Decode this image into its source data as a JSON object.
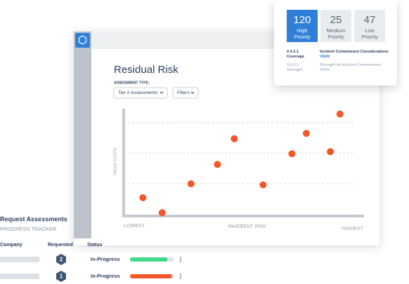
{
  "header": {
    "title": "Residual Risk",
    "assessment_type_label": "ASSESSMENT TYPE:",
    "dropdown": "Tier 2 Assessments",
    "filters": "Filters"
  },
  "chart_data": {
    "type": "scatter",
    "x_label": "INHERENT RISK",
    "y_label": "HIGH GAPS",
    "x_low_label": "LOWEST",
    "x_high_label": "HIGHEST",
    "x": [
      8,
      16,
      28,
      39,
      46,
      58,
      70,
      76,
      86,
      90
    ],
    "values": [
      17,
      3,
      30,
      48,
      72,
      29,
      58,
      77,
      60,
      95
    ],
    "xlim": [
      0,
      100
    ],
    "ylim": [
      0,
      100
    ],
    "color": "#f4582a"
  },
  "priority": [
    {
      "count": 120,
      "label": "High Priority"
    },
    {
      "count": 25,
      "label": "Medium Priority"
    },
    {
      "count": 47,
      "label": "Low Priority"
    }
  ],
  "controls": [
    {
      "code": "2.4.3.1",
      "kind": "Coverage",
      "name": "Incident Containment Considerations",
      "action": "VIEW"
    },
    {
      "code": "2.4.3.1",
      "kind": "Strength",
      "name": "Strength of Incident Containment",
      "action": "VIEW"
    }
  ],
  "tracker": {
    "title": "Request Assessments",
    "subtitle": "PROGRESS TRACKER",
    "columns": [
      "Company",
      "Requested",
      "Status"
    ],
    "rows": [
      {
        "requested": 2,
        "status": "In-Progress",
        "progress": 85,
        "color": "#3fd98a"
      },
      {
        "requested": 1,
        "status": "In-Progress",
        "progress": 95,
        "color": "#f4582a"
      }
    ]
  }
}
